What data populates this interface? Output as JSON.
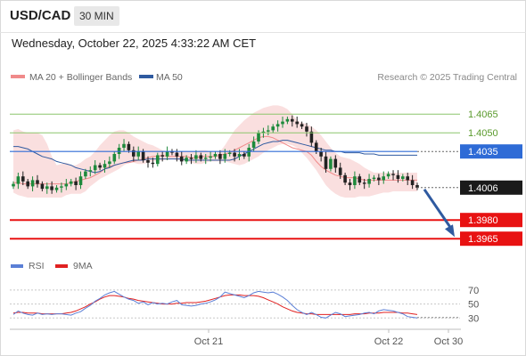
{
  "header": {
    "symbol": "USD/CAD",
    "timeframe": "30 MIN",
    "timestamp": "Wednesday, October 22, 2025 4:33:22 AM CET"
  },
  "legend": {
    "ma20": {
      "label": "MA 20 + Bollinger Bands",
      "color": "#f08a8a"
    },
    "ma50": {
      "label": "MA 50",
      "color": "#2f5aa0"
    },
    "credit": "Research © 2025 Trading Central"
  },
  "rsi_legend": {
    "rsi": {
      "label": "RSI",
      "color": "#5b7fd6"
    },
    "ma9": {
      "label": "9MA",
      "color": "#e02020"
    }
  },
  "colors": {
    "up": "#1e8a3c",
    "down": "#222222",
    "band": "#fadcdc",
    "pivot_line": "#2e6bd6",
    "resistance": "#8cc66c",
    "support": "#e81212",
    "arrow": "#2f5aa0"
  },
  "chart_data": {
    "type": "line",
    "price_panel": {
      "y_range": [
        1.3958,
        1.4078
      ],
      "levels": [
        {
          "label": "1.4065",
          "value": 1.4065,
          "kind": "resistance"
        },
        {
          "label": "1.4050",
          "value": 1.405,
          "kind": "resistance"
        },
        {
          "label": "1.4035",
          "value": 1.4035,
          "kind": "pivot"
        },
        {
          "label": "1.4006",
          "value": 1.4006,
          "kind": "last"
        },
        {
          "label": "1.3980",
          "value": 1.398,
          "kind": "support"
        },
        {
          "label": "1.3965",
          "value": 1.3965,
          "kind": "support"
        }
      ],
      "closes": [
        1.4009,
        1.4015,
        1.4011,
        1.4007,
        1.4012,
        1.4009,
        1.4005,
        1.4007,
        1.4004,
        1.4006,
        1.4007,
        1.4009,
        1.4011,
        1.4008,
        1.4015,
        1.4019,
        1.402,
        1.4024,
        1.4022,
        1.4025,
        1.4027,
        1.4033,
        1.4038,
        1.4041,
        1.4036,
        1.4031,
        1.4035,
        1.4028,
        1.4026,
        1.4025,
        1.4032,
        1.4031,
        1.4035,
        1.4034,
        1.4031,
        1.4027,
        1.403,
        1.4029,
        1.4032,
        1.4029,
        1.403,
        1.4031,
        1.4033,
        1.4029,
        1.4033,
        1.4034,
        1.4031,
        1.4033,
        1.4031,
        1.4038,
        1.4043,
        1.405,
        1.4051,
        1.4052,
        1.4055,
        1.4057,
        1.4059,
        1.4061,
        1.4059,
        1.4057,
        1.4055,
        1.4051,
        1.4042,
        1.4035,
        1.4031,
        1.4021,
        1.4029,
        1.4022,
        1.4016,
        1.401,
        1.4008,
        1.4015,
        1.401,
        1.4009,
        1.4013,
        1.4014,
        1.4012,
        1.4015,
        1.4017,
        1.4016,
        1.4013,
        1.4015,
        1.4012,
        1.4008,
        1.4006
      ],
      "ma20": [
        1.401,
        1.401,
        1.4009,
        1.4009,
        1.4009,
        1.4009,
        1.4009,
        1.4009,
        1.4009,
        1.4009,
        1.4009,
        1.4009,
        1.401,
        1.4011,
        1.4012,
        1.4013,
        1.4014,
        1.4016,
        1.4018,
        1.4021,
        1.4023,
        1.4024,
        1.4025,
        1.4026,
        1.4026,
        1.4027,
        1.4028,
        1.4029,
        1.403,
        1.4031,
        1.4031,
        1.4032,
        1.4031,
        1.4031,
        1.4031,
        1.4031,
        1.4031,
        1.403,
        1.403,
        1.4031,
        1.4031,
        1.4031,
        1.4031,
        1.4032,
        1.4033,
        1.4034,
        1.4036,
        1.4038,
        1.404,
        1.4042,
        1.4044,
        1.4046,
        1.4047,
        1.4047,
        1.4046,
        1.4044,
        1.4042,
        1.404,
        1.4038,
        1.4037,
        1.4036,
        1.4035,
        1.4032,
        1.4027,
        1.4023,
        1.402,
        1.4018,
        1.4016,
        1.4015,
        1.4014,
        1.4014,
        1.4014,
        1.4013,
        1.4012,
        1.4012,
        1.4012,
        1.4012,
        1.4012,
        1.4012,
        1.4012,
        1.4012,
        1.4012,
        1.4012,
        1.4012,
        1.4012
      ],
      "bb_upper": [
        1.4052,
        1.4053,
        1.4051,
        1.405,
        1.405,
        1.405,
        1.4048,
        1.4041,
        1.4031,
        1.4024,
        1.4025,
        1.4026,
        1.4024,
        1.4024,
        1.4026,
        1.4029,
        1.4031,
        1.4035,
        1.404,
        1.4044,
        1.4048,
        1.4051,
        1.4052,
        1.4052,
        1.405,
        1.4047,
        1.4045,
        1.4043,
        1.4041,
        1.404,
        1.4038,
        1.4036,
        1.4035,
        1.4035,
        1.4035,
        1.4035,
        1.4035,
        1.4035,
        1.4035,
        1.4036,
        1.4036,
        1.4035,
        1.4034,
        1.4035,
        1.404,
        1.4046,
        1.4052,
        1.4056,
        1.406,
        1.4063,
        1.4066,
        1.4068,
        1.407,
        1.4071,
        1.4072,
        1.4072,
        1.4071,
        1.4069,
        1.4065,
        1.406,
        1.4058,
        1.4057,
        1.4055,
        1.4052,
        1.4048,
        1.4043,
        1.4038,
        1.4034,
        1.4031,
        1.403,
        1.4029,
        1.4027,
        1.4025,
        1.4022,
        1.402,
        1.4018,
        1.4018,
        1.4018,
        1.4018,
        1.4018,
        1.4018,
        1.4018,
        1.4018,
        1.4018,
        1.4018
      ],
      "bb_lower": [
        1.4002,
        1.4,
        1.3999,
        1.3998,
        1.3998,
        1.3998,
        1.3998,
        1.3998,
        1.3998,
        1.3998,
        1.3998,
        1.4,
        1.4001,
        1.4001,
        1.4001,
        1.4003,
        1.4007,
        1.401,
        1.4013,
        1.4015,
        1.4017,
        1.4019,
        1.4021,
        1.4024,
        1.4026,
        1.4026,
        1.4025,
        1.4025,
        1.4026,
        1.4027,
        1.4027,
        1.4028,
        1.4028,
        1.4029,
        1.4028,
        1.4028,
        1.4027,
        1.4026,
        1.4025,
        1.4025,
        1.4026,
        1.4027,
        1.4027,
        1.4027,
        1.4027,
        1.4026,
        1.4025,
        1.4024,
        1.4025,
        1.4027,
        1.4029,
        1.4031,
        1.4034,
        1.4036,
        1.4038,
        1.404,
        1.4041,
        1.4041,
        1.404,
        1.4038,
        1.4034,
        1.403,
        1.4025,
        1.402,
        1.4014,
        1.4008,
        1.4004,
        1.4001,
        1.3999,
        1.3998,
        1.3998,
        1.3998,
        1.3999,
        1.3999,
        1.3999,
        1.4,
        1.4001,
        1.4002,
        1.4002,
        1.4003,
        1.4003,
        1.4003,
        1.4003,
        1.4003,
        1.4003
      ],
      "ma50": [
        1.4039,
        1.4039,
        1.4038,
        1.4037,
        1.4035,
        1.4033,
        1.4031,
        1.403,
        1.4029,
        1.4027,
        1.4026,
        1.4025,
        1.4024,
        1.4022,
        1.4021,
        1.402,
        1.4019,
        1.4018,
        1.4019,
        1.4021,
        1.4022,
        1.4024,
        1.4025,
        1.4026,
        1.4027,
        1.4028,
        1.4028,
        1.4028,
        1.4029,
        1.4029,
        1.4029,
        1.4029,
        1.4029,
        1.4029,
        1.4029,
        1.4029,
        1.4028,
        1.4028,
        1.4028,
        1.4028,
        1.4028,
        1.4028,
        1.4028,
        1.4028,
        1.4028,
        1.4028,
        1.4029,
        1.4031,
        1.4033,
        1.4035,
        1.4037,
        1.4039,
        1.4041,
        1.4042,
        1.4043,
        1.4043,
        1.4044,
        1.4044,
        1.4043,
        1.4042,
        1.4041,
        1.404,
        1.4039,
        1.4038,
        1.4037,
        1.4036,
        1.4036,
        1.4035,
        1.4035,
        1.4034,
        1.4034,
        1.4034,
        1.4034,
        1.4033,
        1.4033,
        1.4033,
        1.4032,
        1.4032,
        1.4032,
        1.4032,
        1.4032,
        1.4032,
        1.4032,
        1.4032,
        1.4032
      ],
      "forecast_from": 1.4006,
      "forecast_to": 1.3965
    },
    "rsi_panel": {
      "y_range": [
        24,
        80
      ],
      "ticks": [
        70,
        50,
        30
      ],
      "oversold_line": 30,
      "rsi": [
        35,
        40,
        37,
        35,
        34,
        37,
        35,
        36,
        35,
        36,
        36,
        35,
        34,
        37,
        39,
        44,
        48,
        54,
        58,
        63,
        66,
        68,
        64,
        60,
        57,
        55,
        51,
        53,
        49,
        52,
        50,
        51,
        50,
        53,
        55,
        49,
        48,
        47,
        48,
        50,
        51,
        53,
        56,
        60,
        67,
        65,
        63,
        61,
        59,
        62,
        66,
        68,
        67,
        66,
        67,
        64,
        60,
        55,
        48,
        42,
        38,
        35,
        38,
        35,
        31,
        30,
        34,
        38,
        36,
        32,
        33,
        34,
        35,
        37,
        38,
        36,
        40,
        42,
        41,
        40,
        38,
        36,
        32,
        31,
        30
      ],
      "ma9": [
        37,
        38,
        38,
        37,
        37,
        37,
        36,
        36,
        36,
        36,
        36,
        37,
        38,
        40,
        43,
        46,
        50,
        53,
        57,
        60,
        62,
        62,
        61,
        60,
        58,
        57,
        55,
        54,
        53,
        52,
        51,
        50,
        50,
        50,
        51,
        51,
        52,
        52,
        52,
        53,
        54,
        56,
        58,
        60,
        62,
        63,
        63,
        63,
        62,
        62,
        62,
        61,
        59,
        56,
        53,
        50,
        46,
        43,
        40,
        38,
        37,
        36,
        36,
        35,
        35,
        35,
        35,
        35,
        35,
        35,
        35,
        36,
        36,
        36,
        37,
        37,
        37,
        38,
        38,
        38,
        38,
        37,
        37,
        36,
        35
      ]
    },
    "x_axis": {
      "tick_labels": [
        "Oct 21",
        "Oct 22",
        "Oct 30"
      ]
    }
  }
}
